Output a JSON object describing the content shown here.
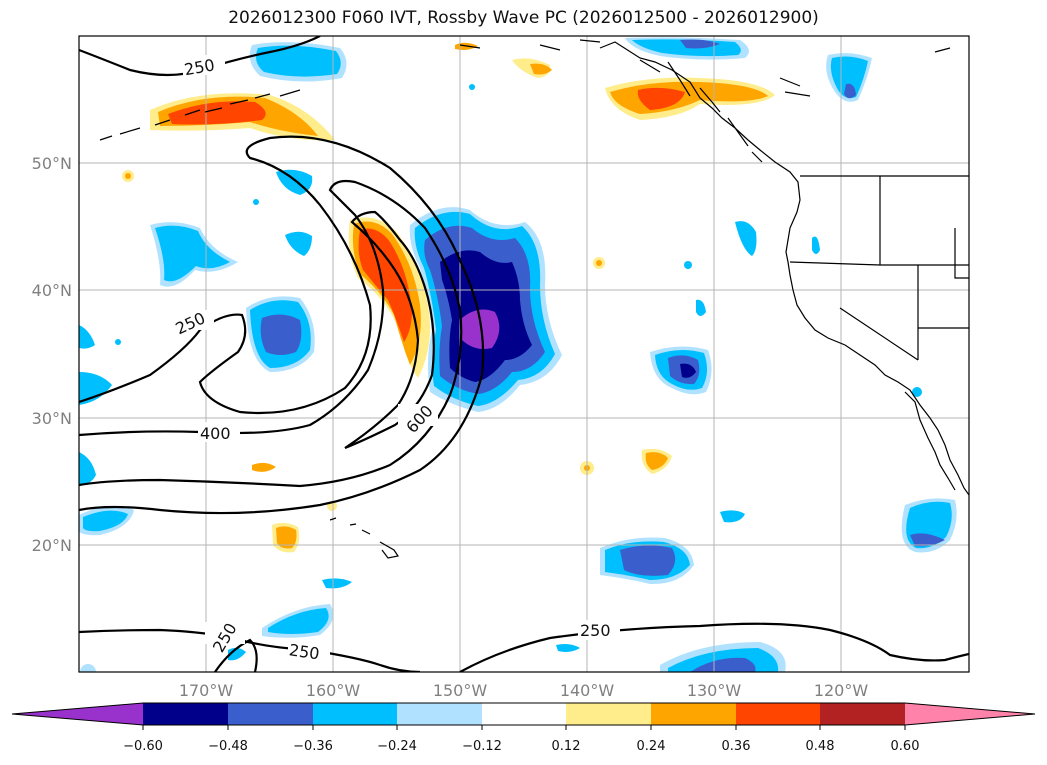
{
  "title": "2026012300 F060 IVT, Rossby Wave PC (2026012500 - 2026012900)",
  "map": {
    "lat_labels": [
      "50°N",
      "40°N",
      "30°N",
      "20°N"
    ],
    "lon_labels": [
      "170°W",
      "160°W",
      "150°W",
      "140°W",
      "130°W",
      "120°W"
    ],
    "contour_labels": [
      "250",
      "250",
      "400",
      "600",
      "250",
      "250",
      "250"
    ]
  },
  "colorbar": {
    "colors": [
      "#9932cc",
      "#00008b",
      "#3a5fcd",
      "#00bfff",
      "#b0e2ff",
      "#ffffff",
      "#ffec8b",
      "#ffa500",
      "#ff4500",
      "#b22222",
      "#ff82ab"
    ],
    "tick_labels": [
      "−0.60",
      "−0.48",
      "−0.36",
      "−0.24",
      "−0.12",
      "0.12",
      "0.24",
      "0.36",
      "0.48",
      "0.60"
    ]
  }
}
